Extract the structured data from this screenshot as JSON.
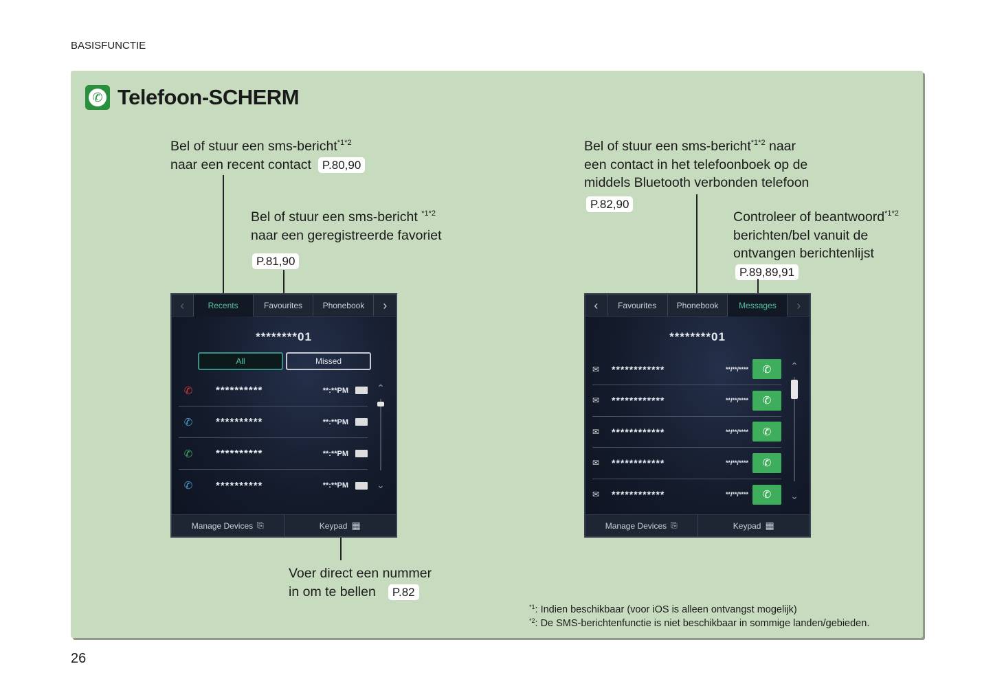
{
  "header": {
    "section": "BASISFUNCTIE"
  },
  "footer": {
    "page_number": "26"
  },
  "panel": {
    "title": "Telefoon-SCHERM",
    "title_icon": "phone-icon",
    "background": "#c7dcbf"
  },
  "callouts": {
    "recents": {
      "line1": "Bel of stuur een sms-bericht",
      "sup": "*1*2",
      "line2": "naar een recent contact",
      "ref": "P.80,90"
    },
    "favourites": {
      "line1": "Bel of stuur een sms-bericht ",
      "sup": "*1*2",
      "line2": "naar een geregistreerde favoriet",
      "ref": "P.81,90"
    },
    "phonebook": {
      "line1": "Bel of stuur een sms-bericht",
      "sup": "*1*2",
      "line1_end": " naar",
      "line2": "een contact in het telefoonboek op de",
      "line3": "middels Bluetooth verbonden telefoon",
      "ref": "P.82,90"
    },
    "messages": {
      "line1": "Controleer of beantwoord",
      "sup": "*1*2",
      "line2": "berichten/bel vanuit de",
      "line3": "ontvangen berichtenlijst",
      "ref": "P.89,89,91"
    },
    "keypad": {
      "line1": "Voer direct een nummer",
      "line2": "in om te bellen",
      "ref": "P.82"
    }
  },
  "footnotes": [
    {
      "mark": "*1",
      "text": ": Indien beschikbaar (voor iOS is alleen ontvangst mogelijk)"
    },
    {
      "mark": "*2",
      "text": ": De SMS-berichtenfunctie is niet beschikbaar in sommige landen/gebieden."
    }
  ],
  "screen_recents": {
    "tabs": [
      "Recents",
      "Favourites",
      "Phonebook"
    ],
    "active_tab": "Recents",
    "number": "********01",
    "filters": {
      "all": "All",
      "missed": "Missed",
      "selected": "All"
    },
    "rows": [
      {
        "icon": "missed-call-icon",
        "color": "#d8363a",
        "name": "**********",
        "time": "**:**PM"
      },
      {
        "icon": "incoming-call-icon",
        "color": "#4a9fd0",
        "name": "**********",
        "time": "**:**PM"
      },
      {
        "icon": "outgoing-call-icon",
        "color": "#3fae5c",
        "name": "**********",
        "time": "**:**PM"
      },
      {
        "icon": "incoming-call-icon",
        "color": "#4a9fd0",
        "name": "**********",
        "time": "**:**PM"
      }
    ],
    "bottom": {
      "manage": "Manage Devices",
      "keypad": "Keypad"
    }
  },
  "screen_messages": {
    "tabs": [
      "Favourites",
      "Phonebook",
      "Messages"
    ],
    "active_tab": "Messages",
    "number": "********01",
    "rows": [
      {
        "icon": "unread-message-icon",
        "name": "************",
        "date": "**/**/****"
      },
      {
        "icon": "read-message-icon",
        "name": "************",
        "date": "**/**/****"
      },
      {
        "icon": "read-message-icon",
        "name": "************",
        "date": "**/**/****"
      },
      {
        "icon": "read-message-icon",
        "name": "************",
        "date": "**/**/****"
      },
      {
        "icon": "read-message-icon",
        "name": "************",
        "date": "**/**/****"
      }
    ],
    "bottom": {
      "manage": "Manage Devices",
      "keypad": "Keypad"
    }
  }
}
